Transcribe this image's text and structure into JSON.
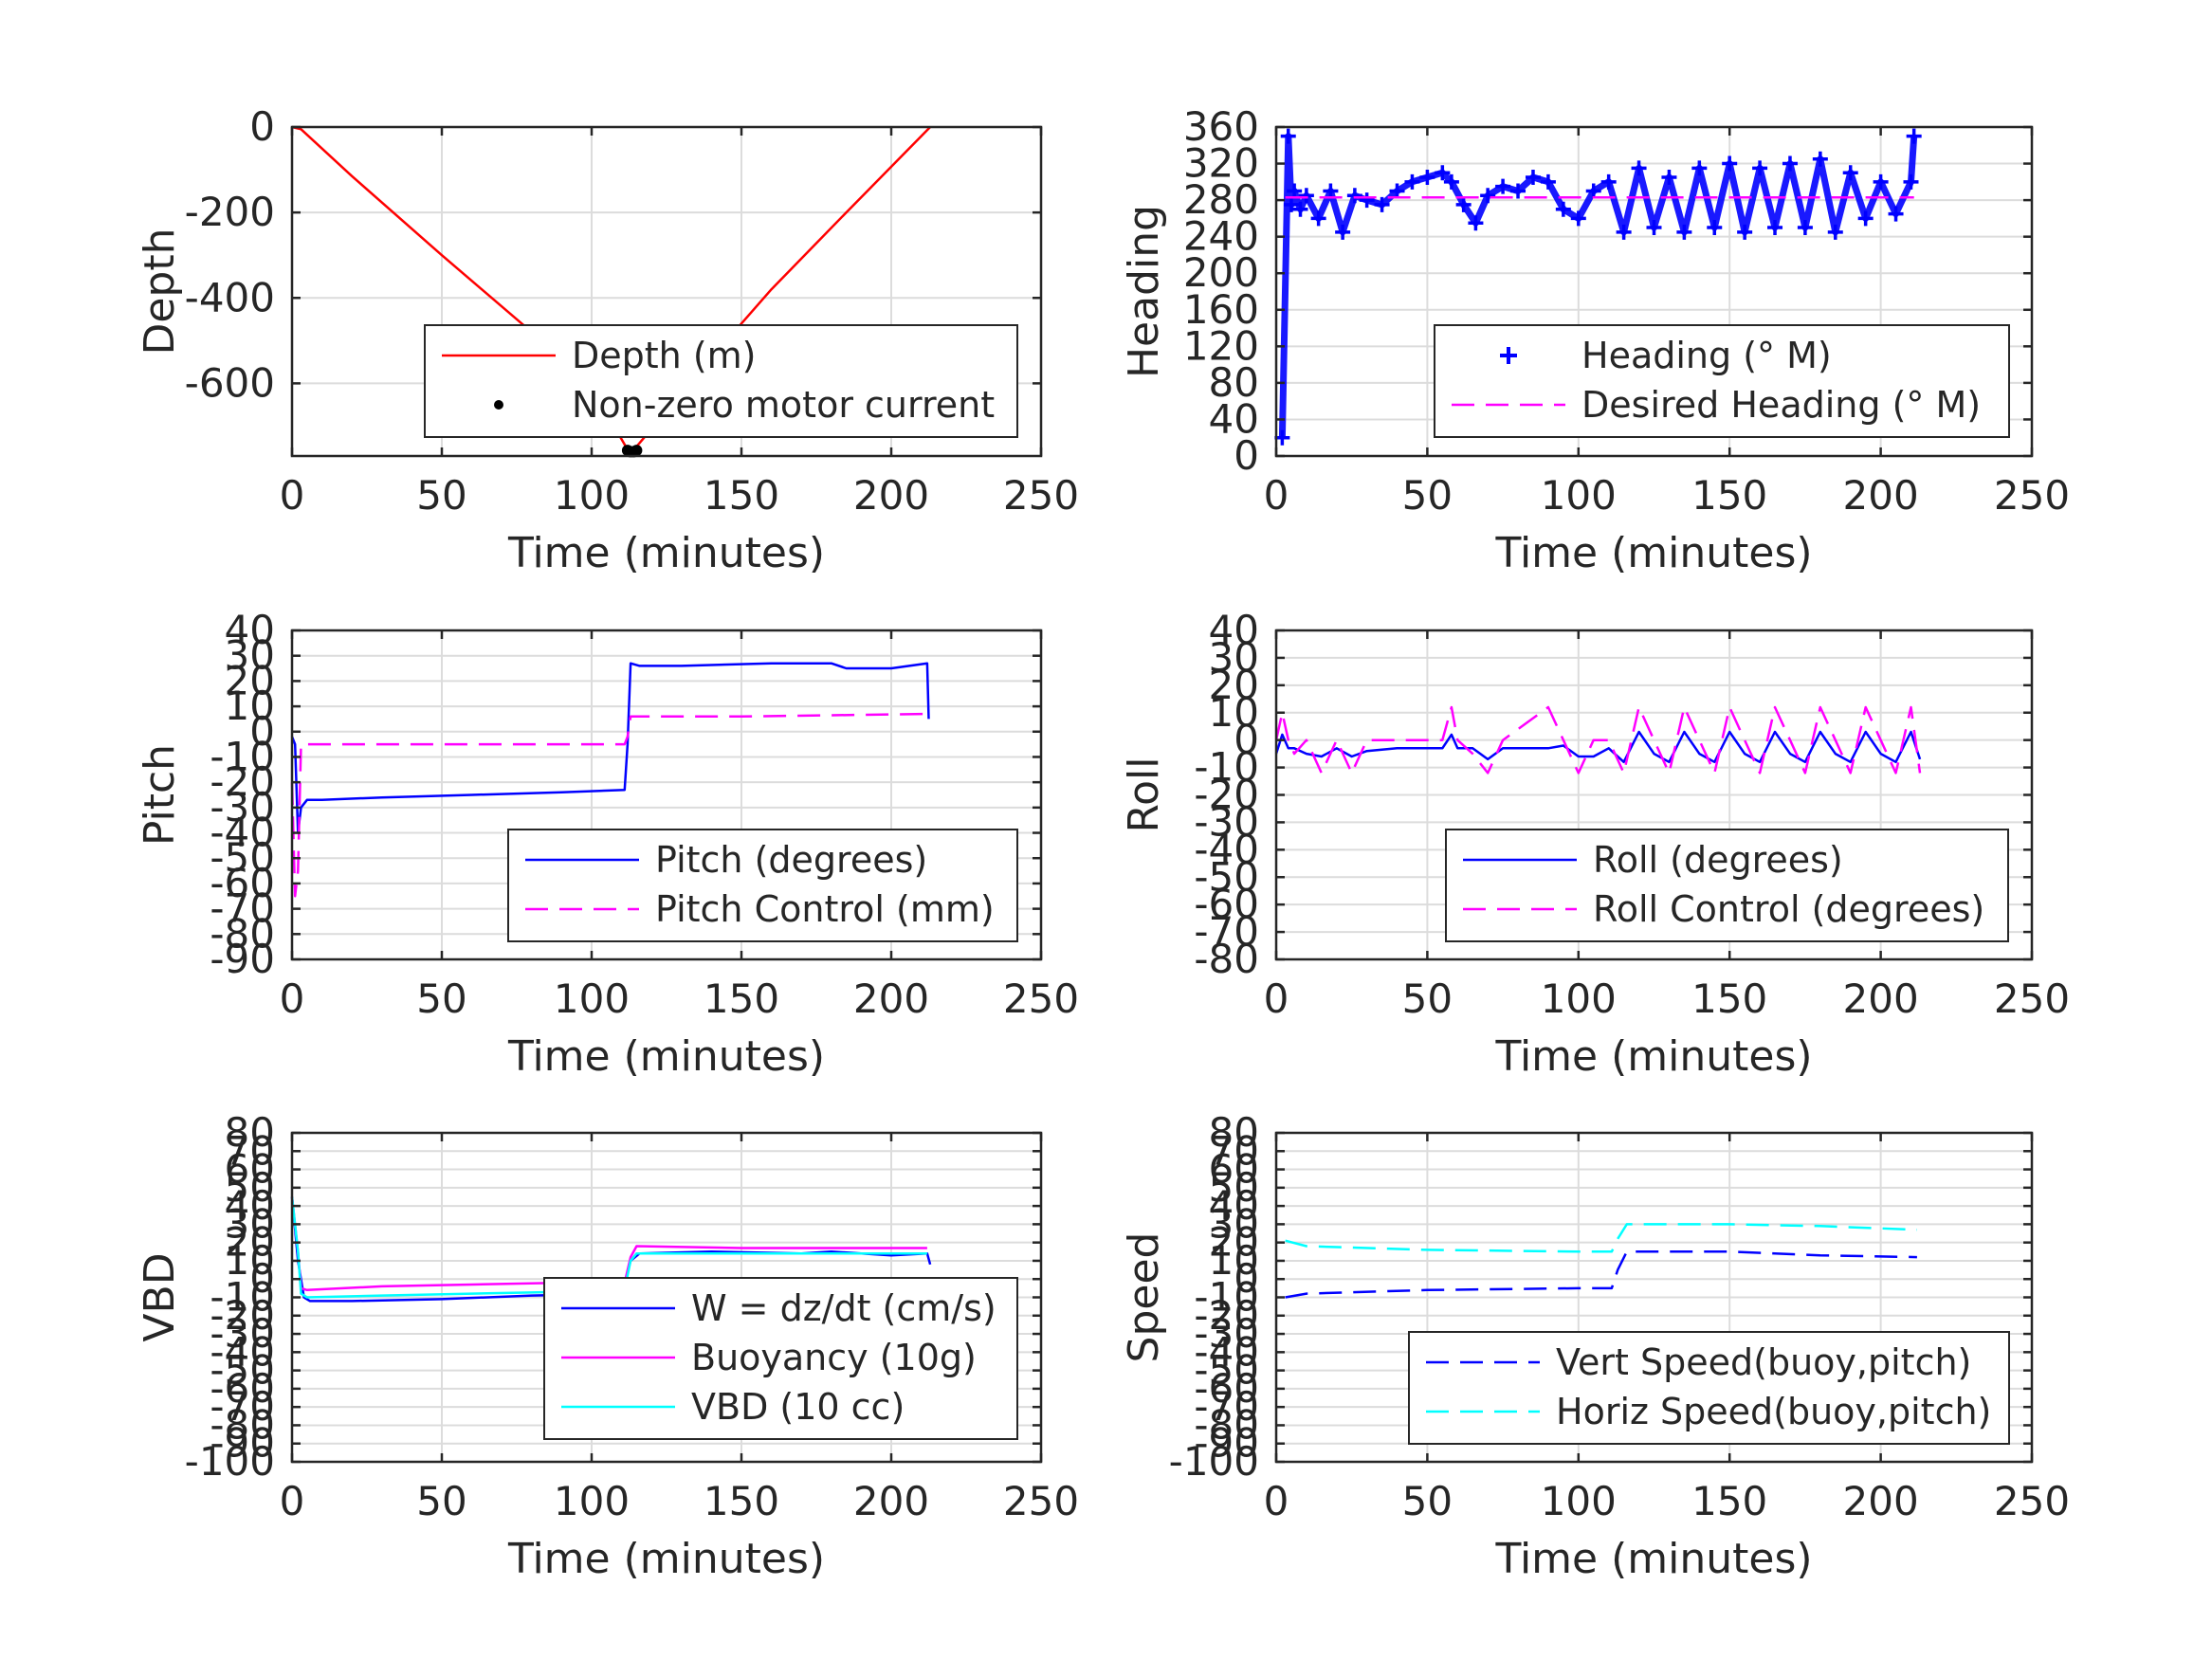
{
  "chart_data": [
    {
      "id": "depth",
      "type": "line",
      "xlabel": "Time (minutes)",
      "ylabel": "Depth",
      "xlim": [
        0,
        250
      ],
      "ylim": [
        -770,
        0
      ],
      "xticks": [
        0,
        50,
        100,
        150,
        200,
        250
      ],
      "yticks": [
        0,
        -200,
        -400,
        -600
      ],
      "grid": true,
      "legend_position": "lower-right",
      "series": [
        {
          "name": "Depth (m)",
          "style": "solid",
          "color": "#ff0000",
          "x": [
            0,
            3,
            20,
            50,
            80,
            100,
            112,
            113,
            115,
            140,
            160,
            185,
            213
          ],
          "y": [
            0,
            -5,
            -115,
            -300,
            -480,
            -610,
            -755,
            -760,
            -748,
            -540,
            -380,
            -200,
            0
          ]
        },
        {
          "name": "Non-zero motor current",
          "style": "dots",
          "color": "#000000",
          "x": [
            112,
            113,
            114,
            115
          ],
          "y": [
            -757,
            -760,
            -760,
            -757
          ]
        }
      ]
    },
    {
      "id": "heading",
      "type": "scatter",
      "xlabel": "Time (minutes)",
      "ylabel": "Heading",
      "xlim": [
        0,
        250
      ],
      "ylim": [
        0,
        360
      ],
      "xticks": [
        0,
        50,
        100,
        150,
        200,
        250
      ],
      "yticks": [
        0,
        40,
        80,
        120,
        160,
        200,
        240,
        280,
        320,
        360
      ],
      "grid": true,
      "legend_position": "lower-right",
      "series": [
        {
          "name": "Heading (° M)",
          "style": "plus",
          "color": "#0000ff",
          "x": [
            2,
            4,
            5,
            6,
            8,
            10,
            14,
            18,
            22,
            26,
            30,
            35,
            40,
            45,
            50,
            55,
            58,
            62,
            66,
            70,
            75,
            80,
            85,
            90,
            95,
            100,
            105,
            110,
            115,
            120,
            125,
            130,
            135,
            140,
            145,
            150,
            155,
            160,
            165,
            170,
            175,
            180,
            185,
            190,
            195,
            200,
            205,
            210,
            211
          ],
          "y": [
            20,
            350,
            275,
            290,
            270,
            285,
            260,
            290,
            245,
            285,
            280,
            275,
            290,
            300,
            305,
            310,
            300,
            275,
            255,
            285,
            295,
            290,
            305,
            300,
            270,
            260,
            290,
            300,
            245,
            315,
            250,
            305,
            245,
            315,
            250,
            320,
            245,
            315,
            250,
            320,
            250,
            325,
            245,
            310,
            260,
            300,
            265,
            300,
            350
          ]
        },
        {
          "name": "Desired Heading (° M)",
          "style": "dashed",
          "color": "#ff00ff",
          "x": [
            3,
            211
          ],
          "y": [
            283,
            283
          ]
        }
      ]
    },
    {
      "id": "pitch",
      "type": "line",
      "xlabel": "Time (minutes)",
      "ylabel": "Pitch",
      "xlim": [
        0,
        250
      ],
      "ylim": [
        -90,
        40
      ],
      "xticks": [
        0,
        50,
        100,
        150,
        200,
        250
      ],
      "yticks": [
        40,
        30,
        20,
        10,
        0,
        -10,
        -20,
        -30,
        -40,
        -50,
        -60,
        -70,
        -80,
        -90
      ],
      "grid": true,
      "legend_position": "lower-right",
      "series": [
        {
          "name": "Pitch (degrees)",
          "style": "solid",
          "color": "#0000ff",
          "x": [
            0,
            1,
            2,
            3,
            5,
            10,
            30,
            60,
            90,
            111,
            112,
            113,
            116,
            130,
            160,
            180,
            185,
            200,
            212,
            212.5
          ],
          "y": [
            -2,
            -5,
            -40,
            -30,
            -27,
            -27,
            -26,
            -25,
            -24,
            -23,
            -5,
            27,
            26,
            26,
            27,
            27,
            25,
            25,
            27,
            5
          ]
        },
        {
          "name": "Pitch Control (mm)",
          "style": "dashed",
          "color": "#ff00ff",
          "x": [
            0,
            1,
            2,
            3,
            5,
            50,
            111,
            112,
            113,
            150,
            212
          ],
          "y": [
            -20,
            -65,
            -55,
            -5,
            -5,
            -5,
            -5,
            -2,
            6,
            6,
            7
          ]
        }
      ]
    },
    {
      "id": "roll",
      "type": "line",
      "xlabel": "Time (minutes)",
      "ylabel": "Roll",
      "xlim": [
        0,
        250
      ],
      "ylim": [
        -80,
        40
      ],
      "xticks": [
        0,
        50,
        100,
        150,
        200,
        250
      ],
      "yticks": [
        40,
        30,
        20,
        10,
        0,
        -10,
        -20,
        -30,
        -40,
        -50,
        -60,
        -70,
        -80
      ],
      "grid": true,
      "legend_position": "lower-right",
      "series": [
        {
          "name": "Roll (degrees)",
          "style": "solid",
          "color": "#0000ff",
          "x": [
            0,
            2,
            4,
            6,
            10,
            15,
            20,
            25,
            30,
            40,
            55,
            58,
            60,
            65,
            70,
            75,
            90,
            95,
            100,
            105,
            110,
            115,
            120,
            125,
            130,
            135,
            140,
            145,
            150,
            155,
            160,
            165,
            170,
            175,
            180,
            185,
            190,
            195,
            200,
            205,
            210,
            213
          ],
          "y": [
            -5,
            2,
            -3,
            -3,
            -5,
            -6,
            -3,
            -6,
            -4,
            -3,
            -3,
            2,
            -3,
            -3,
            -7,
            -3,
            -3,
            -2,
            -6,
            -6,
            -3,
            -8,
            3,
            -5,
            -8,
            3,
            -5,
            -8,
            3,
            -5,
            -8,
            3,
            -5,
            -8,
            3,
            -5,
            -8,
            3,
            -5,
            -8,
            3,
            -7
          ]
        },
        {
          "name": "Roll Control (degrees)",
          "style": "dashed",
          "color": "#ff00ff",
          "x": [
            0,
            2,
            4,
            6,
            10,
            15,
            20,
            25,
            30,
            40,
            55,
            58,
            60,
            65,
            70,
            75,
            90,
            95,
            100,
            105,
            110,
            115,
            120,
            125,
            130,
            135,
            140,
            145,
            150,
            155,
            160,
            165,
            170,
            175,
            180,
            185,
            190,
            195,
            200,
            205,
            210,
            213
          ],
          "y": [
            0,
            10,
            0,
            -5,
            0,
            -12,
            0,
            -12,
            0,
            0,
            0,
            12,
            0,
            -5,
            -12,
            0,
            12,
            0,
            -12,
            0,
            0,
            -12,
            12,
            0,
            -12,
            12,
            0,
            -12,
            12,
            0,
            -12,
            12,
            0,
            -12,
            12,
            0,
            -12,
            12,
            0,
            -12,
            12,
            -12
          ]
        }
      ]
    },
    {
      "id": "vbd",
      "type": "line",
      "xlabel": "Time (minutes)",
      "ylabel": "VBD",
      "xlim": [
        0,
        250
      ],
      "ylim": [
        -100,
        80
      ],
      "xticks": [
        0,
        50,
        100,
        150,
        200,
        250
      ],
      "yticks": [
        80,
        70,
        60,
        50,
        40,
        30,
        20,
        10,
        0,
        -10,
        -20,
        -30,
        -40,
        -50,
        -60,
        -70,
        -80,
        -90,
        -100
      ],
      "ytick_labels": [
        "80",
        "70",
        "60",
        "50",
        "40",
        "30",
        "20",
        "10",
        "0",
        "-10",
        "-20",
        "-30",
        "-40",
        "-50",
        "-60",
        "-70",
        "-80",
        "-90",
        "-100"
      ],
      "grid": true,
      "legend_position": "lower-right",
      "series": [
        {
          "name": "W = dz/dt (cm/s)",
          "style": "solid",
          "color": "#0000ff",
          "x": [
            0,
            2,
            4,
            6,
            20,
            50,
            80,
            110,
            111,
            113,
            116,
            140,
            170,
            180,
            200,
            212,
            213
          ],
          "y": [
            45,
            10,
            -10,
            -12,
            -12,
            -11,
            -9,
            -8,
            -2,
            10,
            14,
            15,
            14,
            15,
            13,
            14,
            8
          ]
        },
        {
          "name": "Buoyancy (10g)",
          "style": "solid",
          "color": "#ff00ff",
          "x": [
            0,
            2,
            3,
            5,
            30,
            60,
            90,
            111,
            112,
            113,
            115,
            150,
            212
          ],
          "y": [
            45,
            15,
            -5,
            -6,
            -4,
            -3,
            -2,
            -2,
            5,
            12,
            18,
            17,
            17
          ]
        },
        {
          "name": "VBD (10 cc)",
          "style": "solid",
          "color": "#00ffff",
          "x": [
            0,
            2,
            3,
            5,
            30,
            60,
            90,
            111,
            112,
            113,
            115,
            150,
            212
          ],
          "y": [
            45,
            15,
            -8,
            -10,
            -9,
            -8,
            -7,
            -6,
            2,
            10,
            14,
            14,
            14
          ]
        }
      ]
    },
    {
      "id": "speed",
      "type": "line",
      "xlabel": "Time (minutes)",
      "ylabel": "Speed",
      "xlim": [
        0,
        250
      ],
      "ylim": [
        -100,
        80
      ],
      "xticks": [
        0,
        50,
        100,
        150,
        200,
        250
      ],
      "yticks": [
        80,
        70,
        60,
        50,
        40,
        30,
        20,
        10,
        0,
        -10,
        -20,
        -30,
        -40,
        -50,
        -60,
        -70,
        -80,
        -90,
        -100
      ],
      "ytick_labels": [
        "80",
        "70",
        "60",
        "50",
        "40",
        "30",
        "20",
        "10",
        "0",
        "-10",
        "-20",
        "-30",
        "-40",
        "-50",
        "-60",
        "-70",
        "-80",
        "-90",
        "-100"
      ],
      "grid": true,
      "legend_position": "lower-right",
      "series": [
        {
          "name": "Vert Speed(buoy,pitch)",
          "style": "dashed",
          "color": "#0000ff",
          "x": [
            3,
            10,
            50,
            100,
            111,
            113,
            116,
            150,
            180,
            212
          ],
          "y": [
            -10,
            -8,
            -6,
            -5,
            -5,
            5,
            15,
            15,
            13,
            12
          ]
        },
        {
          "name": "Horiz Speed(buoy,pitch)",
          "style": "dashed",
          "color": "#00ffff",
          "x": [
            3,
            10,
            50,
            100,
            111,
            113,
            116,
            150,
            180,
            212
          ],
          "y": [
            21,
            18,
            16,
            15,
            15,
            22,
            30,
            30,
            29,
            27
          ]
        }
      ]
    }
  ]
}
